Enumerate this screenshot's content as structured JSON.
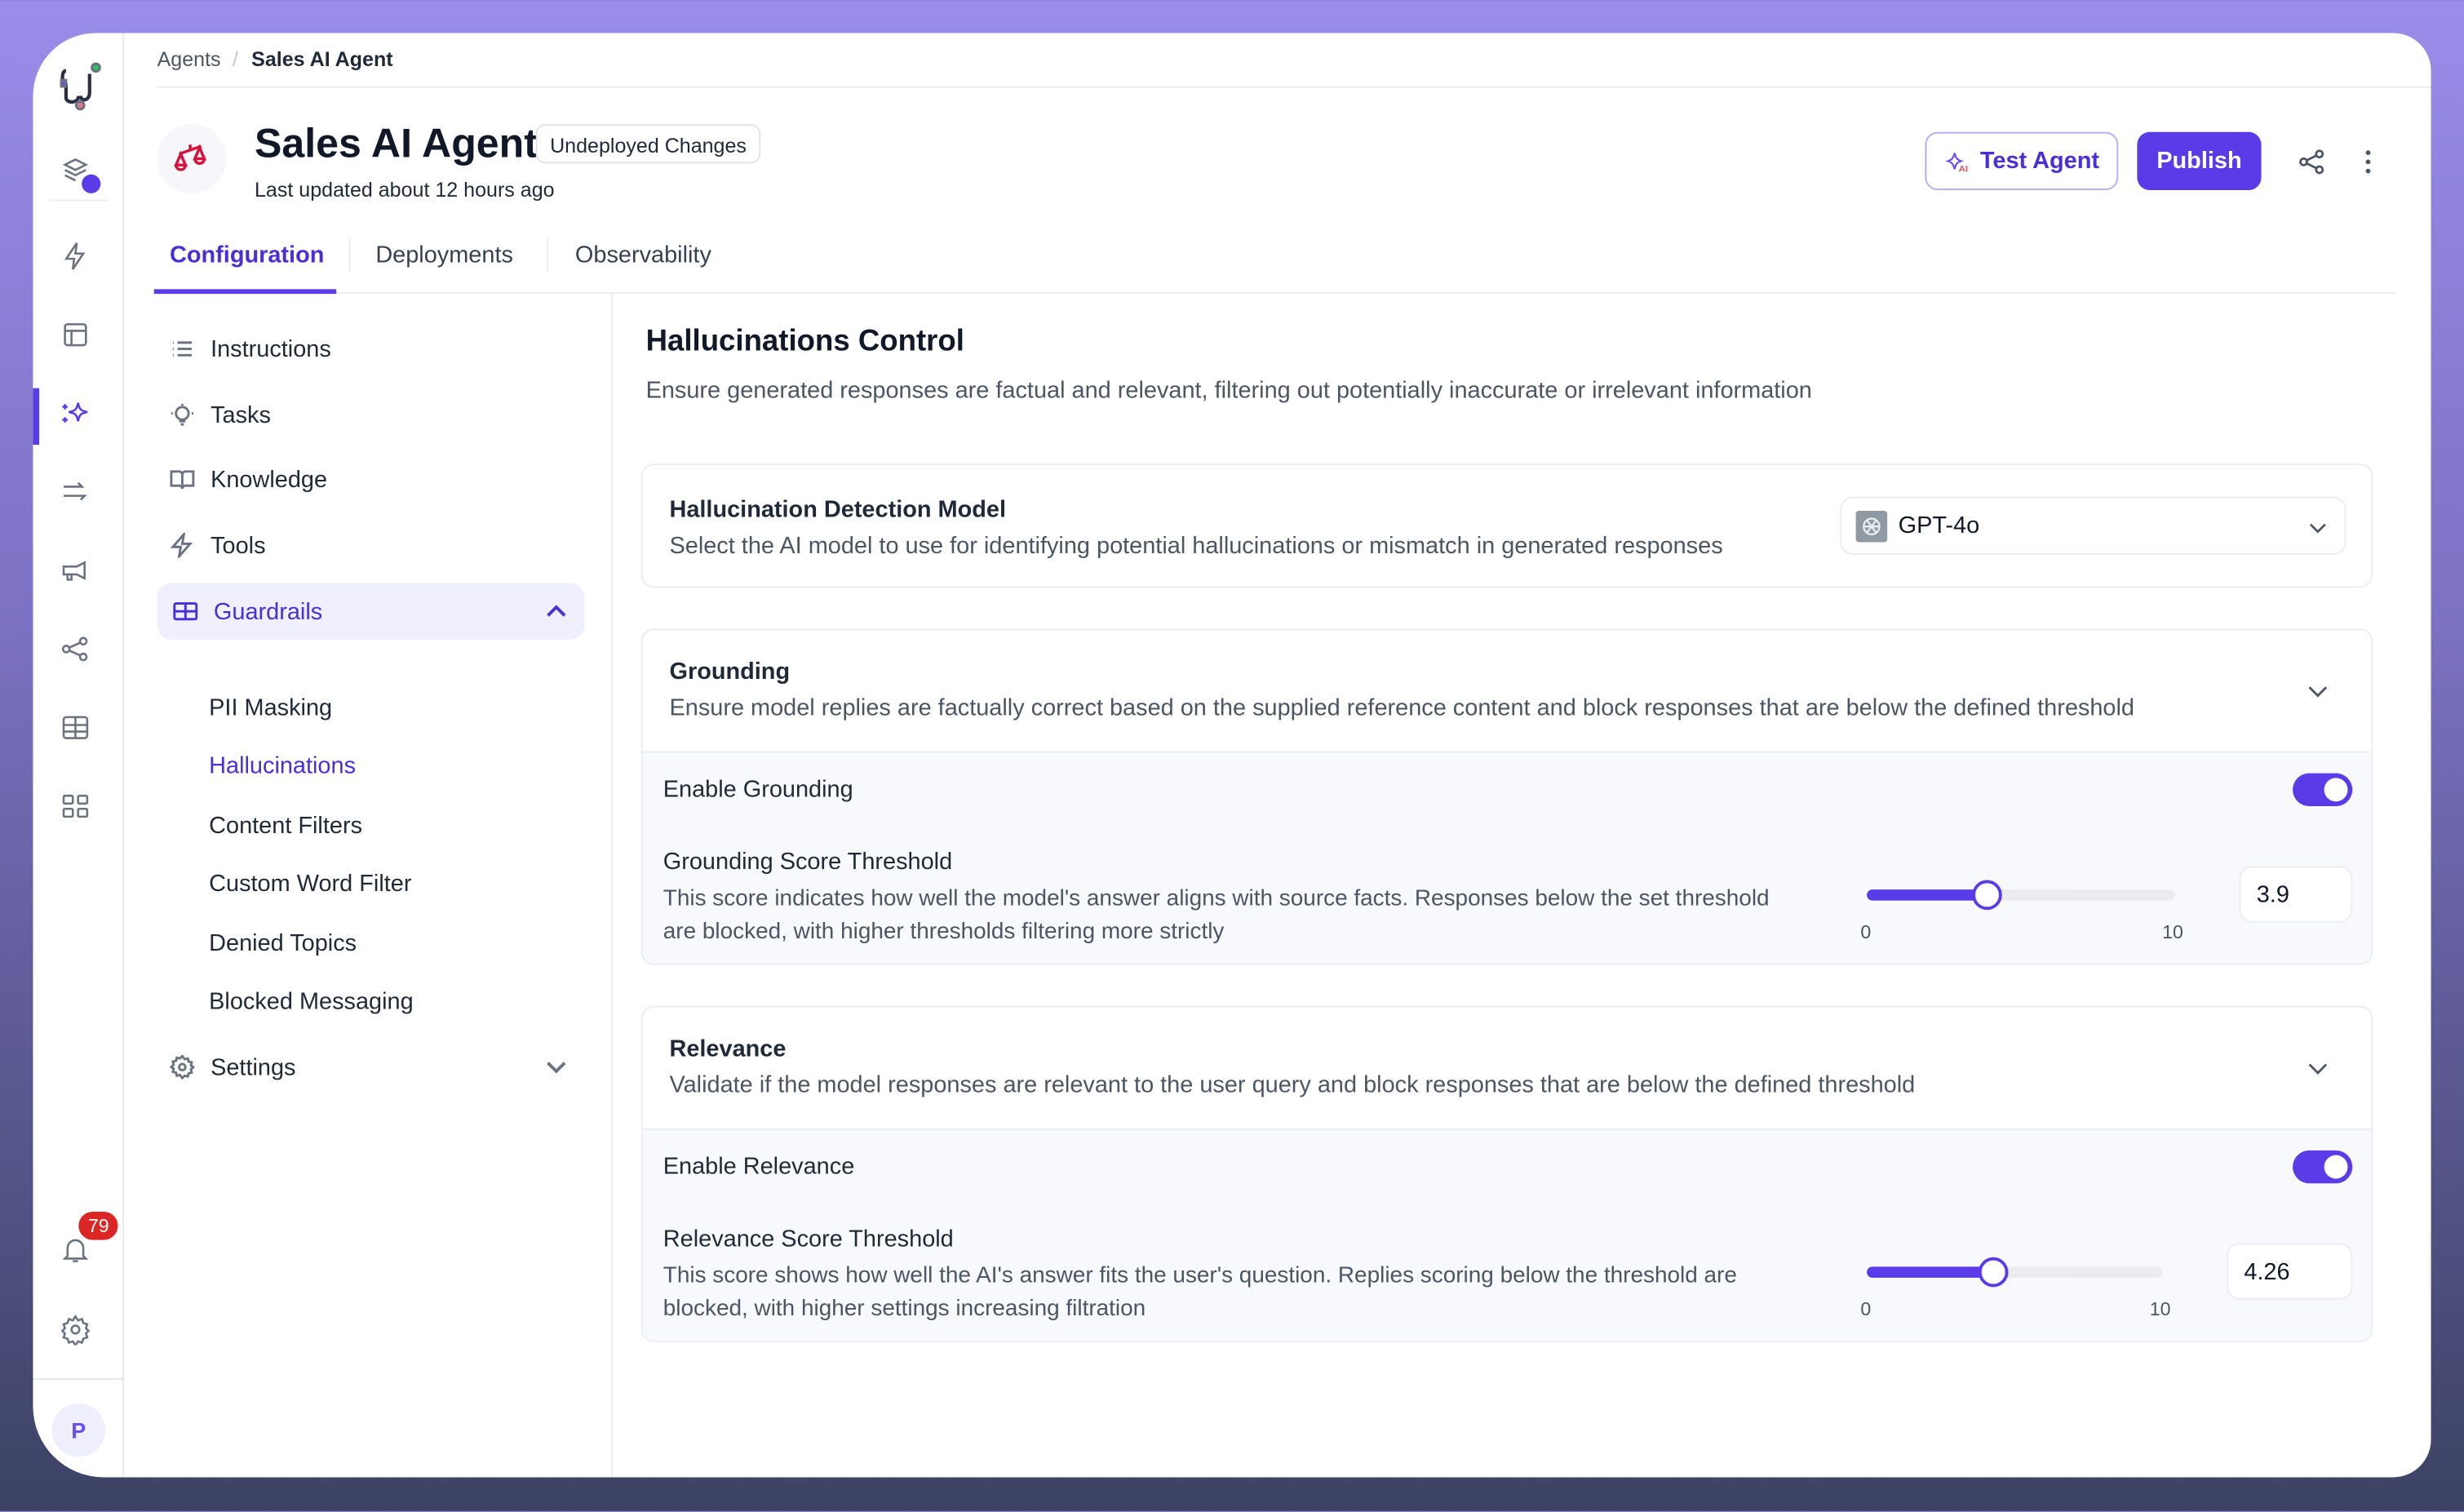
{
  "breadcrumb": {
    "root": "Agents",
    "separator": "/",
    "current": "Sales AI Agent"
  },
  "header": {
    "title": "Sales AI Agent",
    "status_badge": "Undeployed Changes",
    "subtitle": "Last updated about 12 hours ago",
    "test_label": "Test Agent",
    "publish_label": "Publish"
  },
  "tabs": [
    {
      "label": "Configuration",
      "active": true
    },
    {
      "label": "Deployments"
    },
    {
      "label": "Observability"
    }
  ],
  "rail": {
    "notification_count": "79",
    "avatar_initial": "P",
    "accent": "#5b3be8"
  },
  "nav": {
    "items": [
      {
        "label": "Instructions",
        "icon": "list-icon"
      },
      {
        "label": "Tasks",
        "icon": "lightbulb-icon"
      },
      {
        "label": "Knowledge",
        "icon": "book-icon"
      },
      {
        "label": "Tools",
        "icon": "bolt-icon"
      },
      {
        "label": "Guardrails",
        "icon": "table-icon"
      }
    ],
    "guardrails_sub": [
      "PII Masking",
      "Hallucinations",
      "Content Filters",
      "Custom Word Filter",
      "Denied Topics",
      "Blocked Messaging"
    ],
    "settings": "Settings"
  },
  "main": {
    "title": "Hallucinations Control",
    "description": "Ensure generated responses are factual and relevant, filtering out potentially inaccurate or irrelevant information",
    "model": {
      "title": "Hallucination Detection Model",
      "description": "Select the AI model to use for identifying potential hallucinations or mismatch in generated responses",
      "selected": "GPT-4o"
    },
    "grounding": {
      "title": "Grounding",
      "description": "Ensure model replies are factually correct based on the supplied reference content and block responses that are below the defined threshold",
      "enable_label": "Enable Grounding",
      "enabled": true,
      "threshold_title": "Grounding Score Threshold",
      "threshold_desc": "This score indicates how well the model's answer aligns with source facts. Responses below the set threshold are blocked, with higher thresholds filtering more strictly",
      "value": "3.9",
      "min": "0",
      "max": "10"
    },
    "relevance": {
      "title": "Relevance",
      "description": "Validate if the model responses are relevant to the user query and block responses that are below the defined threshold",
      "enable_label": "Enable Relevance",
      "enabled": true,
      "threshold_title": "Relevance Score Threshold",
      "threshold_desc": "This score shows how well the AI's answer fits the user's question. Replies scoring below the threshold are blocked, with higher settings increasing filtration",
      "value": "4.26",
      "min": "0",
      "max": "10"
    }
  }
}
